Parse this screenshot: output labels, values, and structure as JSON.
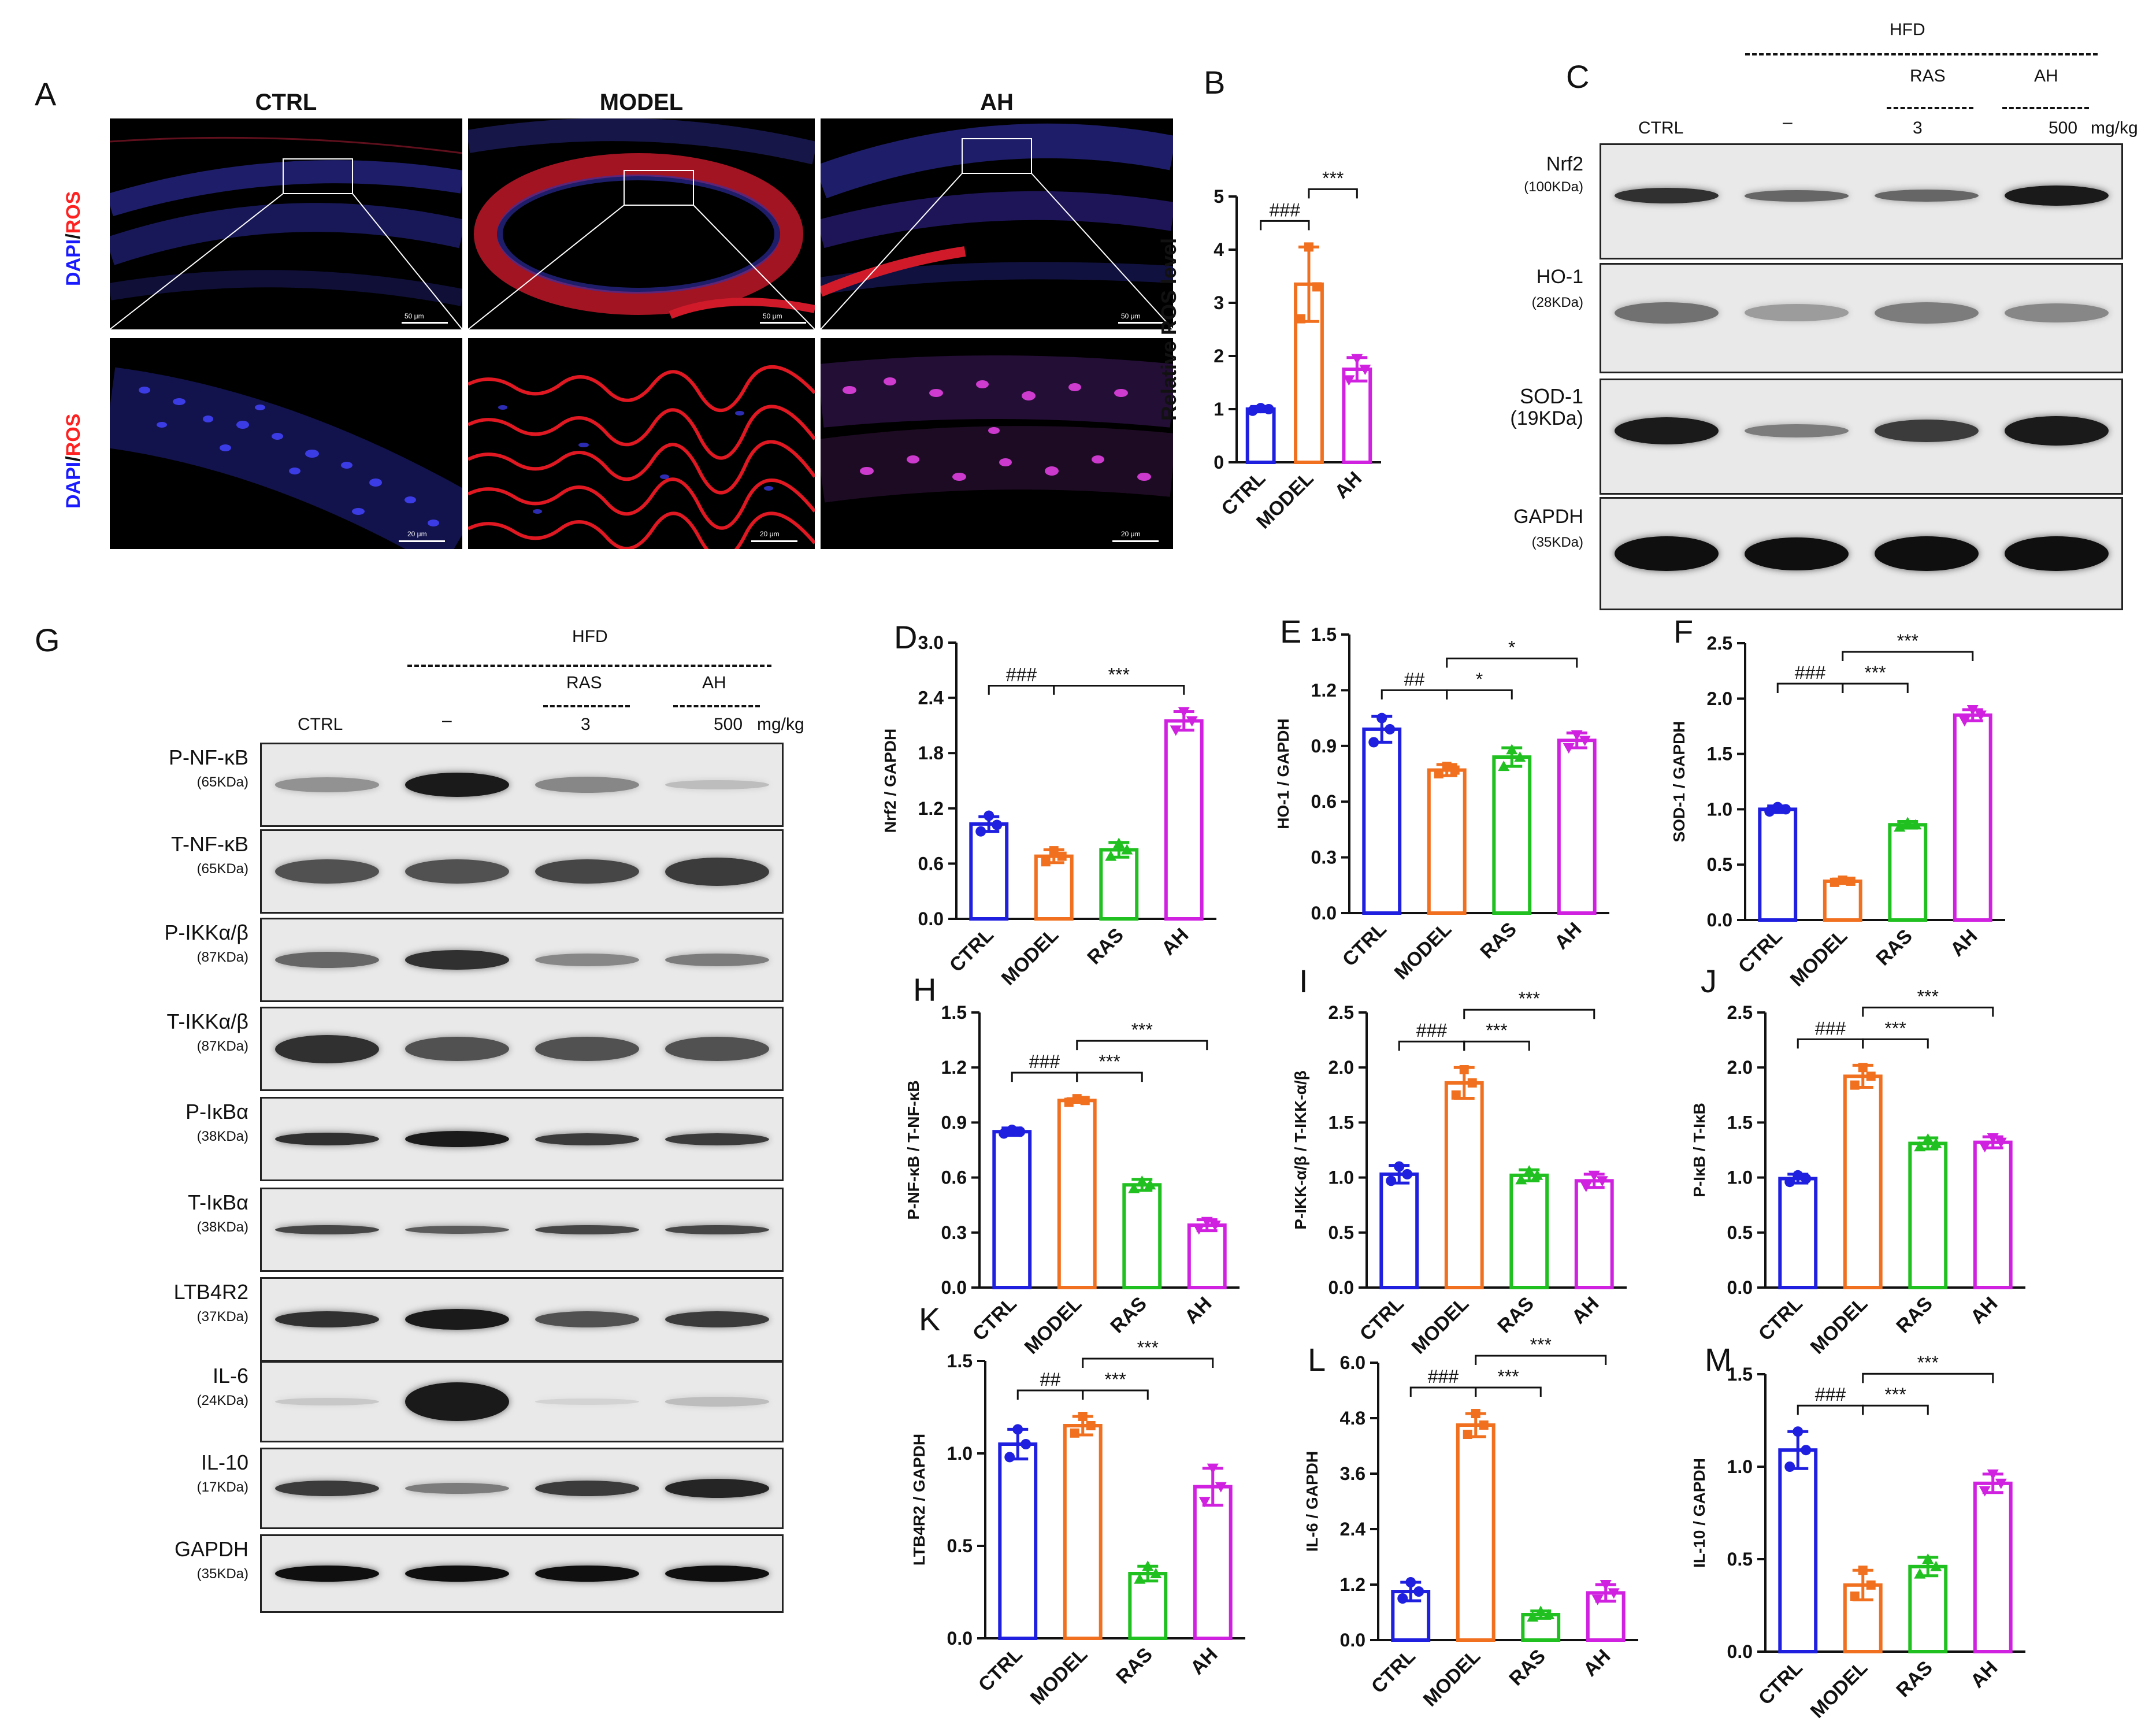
{
  "panel_letters": {
    "A": "A",
    "B": "B",
    "C": "C",
    "D": "D",
    "E": "E",
    "F": "F",
    "G": "G",
    "H": "H",
    "I": "I",
    "J": "J",
    "K": "K",
    "L": "L",
    "M": "M"
  },
  "micrographs": {
    "columns": [
      "CTRL",
      "MODEL",
      "AH"
    ],
    "row_label_dapi": "DAPI",
    "row_label_sep": "/",
    "row_label_ros": "ROS",
    "scale_top": "50 μm",
    "scale_bottom": "20 μm"
  },
  "blot_c": {
    "hfd": "HFD",
    "ras": "RAS",
    "ah": "AH",
    "ctrl": "CTRL",
    "dash": "–",
    "dose_ras": "3",
    "dose_ah": "500",
    "unit": "mg/kg",
    "proteins": [
      {
        "name": "Nrf2",
        "kda": "(100KDa)"
      },
      {
        "name": "HO-1",
        "kda": "(28KDa)"
      },
      {
        "name": "SOD-1",
        "kda": "(19KDa)"
      },
      {
        "name": "GAPDH",
        "kda": "(35KDa)"
      }
    ]
  },
  "blot_g": {
    "hfd": "HFD",
    "ras": "RAS",
    "ah": "AH",
    "ctrl": "CTRL",
    "dash": "–",
    "dose_ras": "3",
    "dose_ah": "500",
    "unit": "mg/kg",
    "proteins": [
      {
        "name": "P-NF-κB",
        "kda": "(65KDa)"
      },
      {
        "name": "T-NF-κB",
        "kda": "(65KDa)"
      },
      {
        "name": "P-IKKα/β",
        "kda": "(87KDa)"
      },
      {
        "name": "T-IKKα/β",
        "kda": "(87KDa)"
      },
      {
        "name": "P-IκBα",
        "kda": "(38KDa)"
      },
      {
        "name": "T-IκBα",
        "kda": "(38KDa)"
      },
      {
        "name": "LTB4R2",
        "kda": "(37KDa)"
      },
      {
        "name": "IL-6",
        "kda": "(24KDa)"
      },
      {
        "name": "IL-10",
        "kda": "(17KDa)"
      },
      {
        "name": "GAPDH",
        "kda": "(35KDa)"
      }
    ]
  },
  "colors": {
    "CTRL": "#1f1fe0",
    "MODEL": "#f07020",
    "RAS": "#20c020",
    "AH": "#d020e0"
  },
  "chart_data": [
    {
      "id": "B",
      "type": "bar",
      "ylabel": "Relative ROS level",
      "ylim": [
        0,
        5
      ],
      "yticks": [
        "0",
        "1",
        "2",
        "3",
        "4",
        "5"
      ],
      "categories": [
        "CTRL",
        "MODEL",
        "AH"
      ],
      "values": [
        1.0,
        3.35,
        1.75
      ],
      "errors": [
        0.05,
        0.7,
        0.22
      ],
      "points": [
        [
          0.97,
          1.0,
          1.02
        ],
        [
          2.7,
          3.3,
          4.05
        ],
        [
          1.55,
          1.75,
          1.95
        ]
      ],
      "sig": [
        {
          "from": 0,
          "to": 1,
          "label": "###",
          "level": 0
        },
        {
          "from": 1,
          "to": 2,
          "label": "***",
          "level": 1
        }
      ]
    },
    {
      "id": "D",
      "type": "bar",
      "ylabel": "Nrf2 / GAPDH",
      "ylim": [
        0,
        3.0
      ],
      "yticks": [
        "0.0",
        "0.6",
        "1.2",
        "1.8",
        "2.4",
        "3.0"
      ],
      "categories": [
        "CTRL",
        "MODEL",
        "RAS",
        "AH"
      ],
      "values": [
        1.03,
        0.68,
        0.75,
        2.15
      ],
      "errors": [
        0.08,
        0.07,
        0.08,
        0.1
      ],
      "points": [
        [
          0.95,
          1.02,
          1.12
        ],
        [
          0.62,
          0.68,
          0.74
        ],
        [
          0.68,
          0.75,
          0.82
        ],
        [
          2.05,
          2.15,
          2.25
        ]
      ],
      "sig": [
        {
          "from": 0,
          "to": 1,
          "label": "###",
          "level": 0
        },
        {
          "from": 1,
          "to": 3,
          "label": "***",
          "level": 0
        }
      ]
    },
    {
      "id": "E",
      "type": "bar",
      "ylabel": "HO-1 / GAPDH",
      "ylim": [
        0,
        1.5
      ],
      "yticks": [
        "0.0",
        "0.3",
        "0.6",
        "0.9",
        "1.2",
        "1.5"
      ],
      "categories": [
        "CTRL",
        "MODEL",
        "RAS",
        "AH"
      ],
      "values": [
        0.99,
        0.77,
        0.84,
        0.93
      ],
      "errors": [
        0.07,
        0.03,
        0.05,
        0.04
      ],
      "points": [
        [
          0.92,
          0.99,
          1.05
        ],
        [
          0.75,
          0.77,
          0.79
        ],
        [
          0.79,
          0.84,
          0.88
        ],
        [
          0.89,
          0.93,
          0.96
        ]
      ],
      "sig": [
        {
          "from": 0,
          "to": 1,
          "label": "##",
          "level": 0
        },
        {
          "from": 1,
          "to": 2,
          "label": "*",
          "level": 0
        },
        {
          "from": 1,
          "to": 3,
          "label": "*",
          "level": 1
        }
      ]
    },
    {
      "id": "F",
      "type": "bar",
      "ylabel": "SOD-1 / GAPDH",
      "ylim": [
        0,
        2.5
      ],
      "yticks": [
        "0.0",
        "0.5",
        "1.0",
        "1.5",
        "2.0",
        "2.5"
      ],
      "categories": [
        "CTRL",
        "MODEL",
        "RAS",
        "AH"
      ],
      "values": [
        1.0,
        0.35,
        0.86,
        1.85
      ],
      "errors": [
        0.03,
        0.02,
        0.03,
        0.05
      ],
      "points": [
        [
          0.98,
          1.0,
          1.02
        ],
        [
          0.34,
          0.35,
          0.36
        ],
        [
          0.84,
          0.86,
          0.88
        ],
        [
          1.8,
          1.85,
          1.9
        ]
      ],
      "sig": [
        {
          "from": 0,
          "to": 1,
          "label": "###",
          "level": 0
        },
        {
          "from": 1,
          "to": 2,
          "label": "***",
          "level": 0
        },
        {
          "from": 1,
          "to": 3,
          "label": "***",
          "level": 1
        }
      ]
    },
    {
      "id": "H",
      "type": "bar",
      "ylabel": "P-NF-κB / T-NF-κB",
      "ylim": [
        0,
        1.5
      ],
      "yticks": [
        "0.0",
        "0.3",
        "0.6",
        "0.9",
        "1.2",
        "1.5"
      ],
      "categories": [
        "CTRL",
        "MODEL",
        "RAS",
        "AH"
      ],
      "values": [
        0.85,
        1.02,
        0.56,
        0.34
      ],
      "errors": [
        0.02,
        0.01,
        0.03,
        0.03
      ],
      "points": [
        [
          0.84,
          0.85,
          0.86
        ],
        [
          1.01,
          1.02,
          1.03
        ],
        [
          0.54,
          0.56,
          0.58
        ],
        [
          0.32,
          0.34,
          0.36
        ]
      ],
      "sig": [
        {
          "from": 0,
          "to": 1,
          "label": "###",
          "level": 0
        },
        {
          "from": 1,
          "to": 2,
          "label": "***",
          "level": 0
        },
        {
          "from": 1,
          "to": 3,
          "label": "***",
          "level": 1
        }
      ]
    },
    {
      "id": "I",
      "type": "bar",
      "ylabel": "P-IKK-α/β / T-IKK-α/β",
      "ylim": [
        0,
        2.5
      ],
      "yticks": [
        "0.0",
        "0.5",
        "1.0",
        "1.5",
        "2.0",
        "2.5"
      ],
      "categories": [
        "CTRL",
        "MODEL",
        "RAS",
        "AH"
      ],
      "values": [
        1.03,
        1.86,
        1.02,
        0.97
      ],
      "errors": [
        0.08,
        0.14,
        0.05,
        0.06
      ],
      "points": [
        [
          0.97,
          1.03,
          1.1
        ],
        [
          1.75,
          1.86,
          1.98
        ],
        [
          0.98,
          1.02,
          1.06
        ],
        [
          0.92,
          0.97,
          1.02
        ]
      ],
      "sig": [
        {
          "from": 0,
          "to": 1,
          "label": "###",
          "level": 0
        },
        {
          "from": 1,
          "to": 2,
          "label": "***",
          "level": 0
        },
        {
          "from": 1,
          "to": 3,
          "label": "***",
          "level": 1
        }
      ]
    },
    {
      "id": "J",
      "type": "bar",
      "ylabel": "P-IκB / T-IκB",
      "ylim": [
        0,
        2.5
      ],
      "yticks": [
        "0.0",
        "0.5",
        "1.0",
        "1.5",
        "2.0",
        "2.5"
      ],
      "categories": [
        "CTRL",
        "MODEL",
        "RAS",
        "AH"
      ],
      "values": [
        0.99,
        1.92,
        1.31,
        1.32
      ],
      "errors": [
        0.04,
        0.1,
        0.05,
        0.05
      ],
      "points": [
        [
          0.96,
          0.99,
          1.02
        ],
        [
          1.84,
          1.92,
          2.0
        ],
        [
          1.28,
          1.31,
          1.35
        ],
        [
          1.28,
          1.32,
          1.36
        ]
      ],
      "sig": [
        {
          "from": 0,
          "to": 1,
          "label": "###",
          "level": 0
        },
        {
          "from": 1,
          "to": 2,
          "label": "***",
          "level": 0
        },
        {
          "from": 1,
          "to": 3,
          "label": "***",
          "level": 1
        }
      ]
    },
    {
      "id": "K",
      "type": "bar",
      "ylabel": "LTB4R2 / GAPDH",
      "ylim": [
        0,
        1.5
      ],
      "yticks": [
        "0.0",
        "0.5",
        "1.0",
        "1.5"
      ],
      "categories": [
        "CTRL",
        "MODEL",
        "RAS",
        "AH"
      ],
      "values": [
        1.05,
        1.15,
        0.35,
        0.82
      ],
      "errors": [
        0.08,
        0.05,
        0.04,
        0.1
      ],
      "points": [
        [
          0.98,
          1.05,
          1.13
        ],
        [
          1.11,
          1.15,
          1.2
        ],
        [
          0.32,
          0.35,
          0.39
        ],
        [
          0.74,
          0.82,
          0.92
        ]
      ],
      "sig": [
        {
          "from": 0,
          "to": 1,
          "label": "##",
          "level": 0
        },
        {
          "from": 1,
          "to": 2,
          "label": "***",
          "level": 0
        },
        {
          "from": 1,
          "to": 3,
          "label": "***",
          "level": 1
        }
      ]
    },
    {
      "id": "L",
      "type": "bar",
      "ylabel": "IL-6 / GAPDH",
      "ylim": [
        0,
        6.0
      ],
      "yticks": [
        "0.0",
        "1.2",
        "2.4",
        "3.6",
        "4.8",
        "6.0"
      ],
      "categories": [
        "CTRL",
        "MODEL",
        "RAS",
        "AH"
      ],
      "values": [
        1.05,
        4.65,
        0.55,
        1.02
      ],
      "errors": [
        0.2,
        0.25,
        0.08,
        0.18
      ],
      "points": [
        [
          0.9,
          1.05,
          1.25
        ],
        [
          4.45,
          4.65,
          4.9
        ],
        [
          0.5,
          0.55,
          0.62
        ],
        [
          0.88,
          1.02,
          1.2
        ]
      ],
      "sig": [
        {
          "from": 0,
          "to": 1,
          "label": "###",
          "level": 0
        },
        {
          "from": 1,
          "to": 2,
          "label": "***",
          "level": 0
        },
        {
          "from": 1,
          "to": 3,
          "label": "***",
          "level": 1
        }
      ]
    },
    {
      "id": "M",
      "type": "bar",
      "ylabel": "IL-10 / GAPDH",
      "ylim": [
        0,
        1.5
      ],
      "yticks": [
        "0.0",
        "0.5",
        "1.0",
        "1.5"
      ],
      "categories": [
        "CTRL",
        "MODEL",
        "RAS",
        "AH"
      ],
      "values": [
        1.09,
        0.36,
        0.46,
        0.91
      ],
      "errors": [
        0.1,
        0.08,
        0.05,
        0.05
      ],
      "points": [
        [
          1.0,
          1.09,
          1.19
        ],
        [
          0.3,
          0.36,
          0.44
        ],
        [
          0.42,
          0.46,
          0.5
        ],
        [
          0.87,
          0.91,
          0.96
        ]
      ],
      "sig": [
        {
          "from": 0,
          "to": 1,
          "label": "###",
          "level": 0
        },
        {
          "from": 1,
          "to": 2,
          "label": "***",
          "level": 0
        },
        {
          "from": 1,
          "to": 3,
          "label": "***",
          "level": 1
        }
      ]
    }
  ]
}
